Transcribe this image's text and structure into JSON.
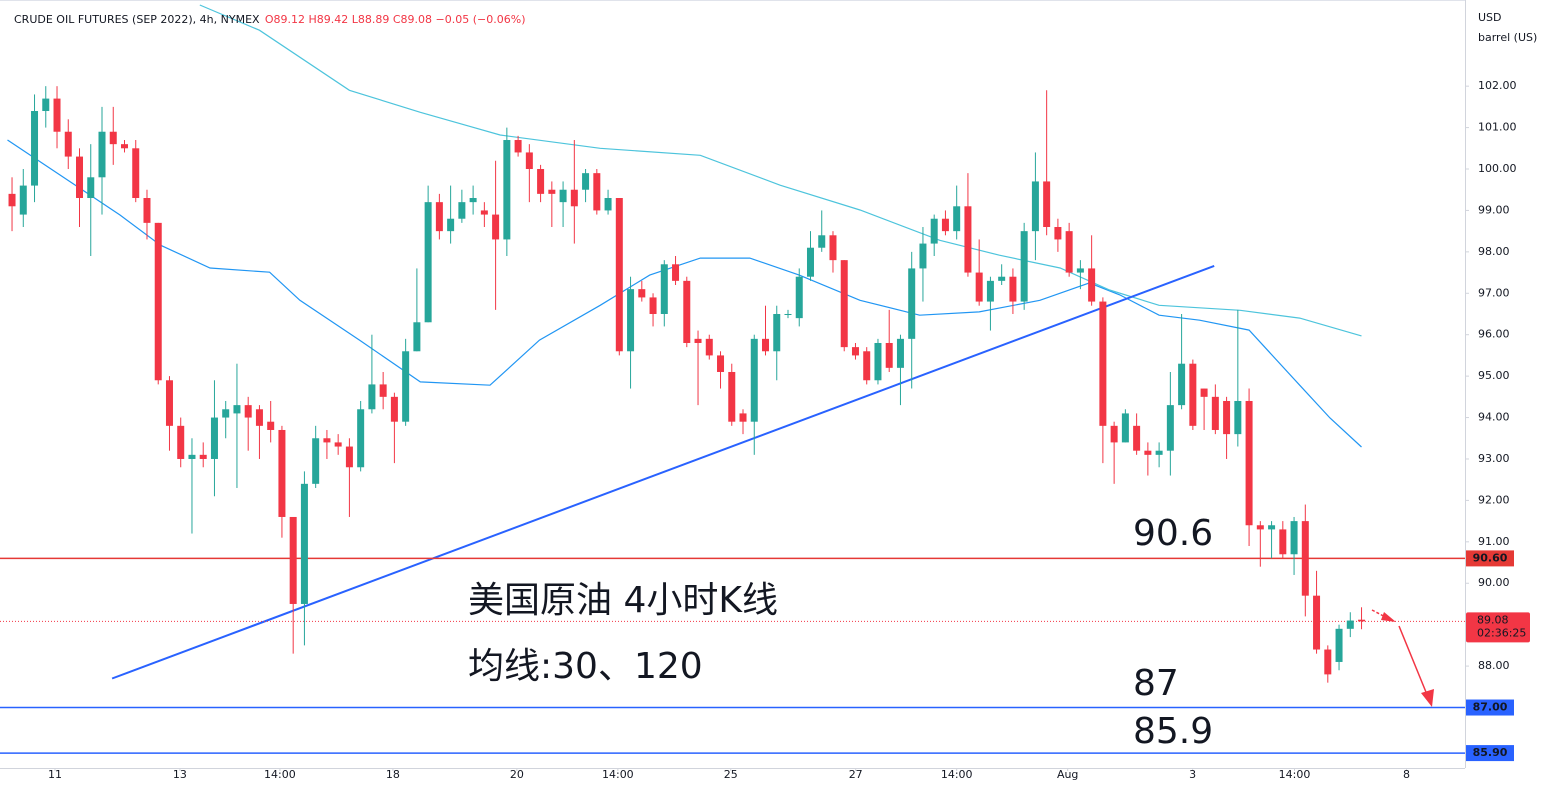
{
  "chart_data": {
    "type": "candlestick",
    "title": "CRUDE OIL FUTURES (SEP 2022), 4h, NYMEX",
    "ohlc_text": "O89.12 H89.42 L88.89 C89.08 −0.05 (−0.06%)",
    "y_axis_unit": [
      "USD",
      "barrel (US)"
    ],
    "xlim": [
      -1.07,
      129.2
    ],
    "xticks": [
      {
        "value": 3.82,
        "label": "11"
      },
      {
        "value": 14.93,
        "label": "13"
      },
      {
        "value": 23.82,
        "label": "14:00"
      },
      {
        "value": 33.87,
        "label": "18"
      },
      {
        "value": 44.89,
        "label": "20"
      },
      {
        "value": 53.87,
        "label": "14:00"
      },
      {
        "value": 63.91,
        "label": "25"
      },
      {
        "value": 75.02,
        "label": "27"
      },
      {
        "value": 84.0,
        "label": "14:00"
      },
      {
        "value": 93.87,
        "label": "Aug"
      },
      {
        "value": 104.98,
        "label": "3"
      },
      {
        "value": 114.04,
        "label": "14:00"
      },
      {
        "value": 124.0,
        "label": "8"
      }
    ],
    "ylim": [
      85.54,
      104.08
    ],
    "yticks": [
      {
        "value": 88,
        "label": "88.00"
      },
      {
        "value": 89,
        "label": "89.00"
      },
      {
        "value": 90,
        "label": "90.00"
      },
      {
        "value": 91,
        "label": "91.00"
      },
      {
        "value": 92,
        "label": "92.00"
      },
      {
        "value": 93,
        "label": "93.00"
      },
      {
        "value": 94,
        "label": "94.00"
      },
      {
        "value": 95,
        "label": "95.00"
      },
      {
        "value": 96,
        "label": "96.00"
      },
      {
        "value": 97,
        "label": "97.00"
      },
      {
        "value": 98,
        "label": "98.00"
      },
      {
        "value": 99,
        "label": "99.00"
      },
      {
        "value": 100,
        "label": "100.00"
      },
      {
        "value": 101,
        "label": "101.00"
      },
      {
        "value": 102,
        "label": "102.00"
      }
    ],
    "up_color": "#26a69a",
    "down_color": "#f23645",
    "open": [
      99.4,
      98.9,
      99.6,
      101.4,
      101.7,
      100.9,
      100.3,
      99.3,
      99.8,
      100.9,
      100.6,
      100.5,
      99.3,
      98.7,
      94.9,
      93.8,
      93.0,
      93.1,
      93.0,
      94.0,
      94.1,
      94.3,
      94.2,
      93.9,
      93.7,
      91.6,
      89.5,
      92.4,
      93.5,
      93.4,
      93.3,
      92.8,
      94.2,
      94.8,
      94.5,
      93.9,
      95.6,
      96.3,
      99.2,
      98.5,
      98.8,
      99.2,
      99.0,
      98.9,
      98.3,
      100.7,
      100.4,
      100.0,
      99.5,
      99.2,
      99.5,
      99.5,
      99.9,
      99.0,
      99.3,
      95.6,
      97.1,
      96.9,
      96.5,
      97.7,
      97.3,
      95.9,
      95.9,
      95.5,
      95.1,
      94.1,
      93.9,
      95.9,
      95.6,
      96.5,
      96.4,
      97.4,
      98.1,
      98.4,
      97.8,
      95.7,
      95.6,
      94.9,
      95.8,
      95.2,
      95.9,
      97.6,
      98.2,
      98.8,
      98.5,
      99.1,
      97.5,
      96.8,
      97.3,
      97.4,
      96.8,
      98.5,
      99.7,
      98.6,
      98.5,
      97.5,
      97.6,
      96.8,
      93.8,
      93.4,
      93.8,
      93.2,
      93.1,
      93.2,
      94.3,
      95.3,
      94.7,
      94.5,
      94.4,
      93.6,
      94.4,
      91.4,
      91.3,
      91.3,
      90.7,
      91.5,
      89.7,
      88.4,
      88.1,
      88.9,
      89.12
    ],
    "high": [
      99.8,
      100.0,
      101.8,
      102.0,
      102.0,
      101.2,
      100.5,
      100.6,
      101.5,
      101.5,
      100.7,
      100.7,
      99.5,
      98.7,
      95.0,
      94.0,
      93.5,
      93.4,
      94.9,
      94.4,
      95.3,
      94.5,
      94.3,
      94.4,
      93.8,
      91.6,
      92.7,
      93.8,
      93.7,
      93.6,
      93.5,
      94.4,
      96.0,
      95.1,
      94.6,
      95.9,
      97.6,
      99.6,
      99.4,
      99.6,
      99.5,
      99.6,
      99.2,
      100.2,
      101.0,
      100.8,
      100.6,
      100.1,
      99.7,
      99.7,
      100.7,
      100.0,
      100.0,
      99.5,
      99.3,
      97.4,
      97.3,
      97.0,
      97.8,
      97.9,
      97.4,
      96.1,
      96.0,
      95.6,
      95.3,
      94.2,
      96.0,
      96.7,
      96.7,
      96.6,
      97.6,
      98.5,
      99.0,
      98.5,
      97.8,
      95.8,
      95.7,
      95.9,
      96.6,
      96.0,
      98.0,
      98.6,
      98.9,
      99.0,
      99.6,
      99.9,
      98.3,
      97.4,
      97.7,
      97.6,
      98.7,
      100.4,
      101.9,
      98.8,
      98.7,
      97.8,
      98.4,
      96.9,
      93.9,
      94.2,
      94.1,
      93.4,
      93.4,
      95.1,
      96.5,
      95.4,
      94.7,
      94.8,
      94.5,
      96.6,
      94.7,
      91.5,
      91.5,
      91.5,
      91.6,
      91.9,
      90.3,
      88.5,
      89.0,
      89.3,
      89.42
    ],
    "low": [
      98.5,
      98.6,
      99.2,
      101.0,
      100.5,
      100.0,
      98.6,
      97.9,
      98.9,
      100.1,
      100.4,
      99.2,
      98.3,
      94.8,
      93.2,
      92.8,
      91.2,
      92.8,
      92.1,
      93.5,
      92.3,
      93.2,
      93.0,
      93.4,
      91.1,
      88.3,
      88.5,
      92.3,
      93.0,
      93.1,
      91.6,
      92.7,
      94.1,
      94.2,
      92.9,
      93.8,
      95.6,
      96.3,
      98.3,
      98.2,
      98.7,
      98.9,
      98.6,
      96.6,
      97.9,
      100.3,
      99.2,
      99.2,
      98.6,
      98.6,
      98.2,
      99.2,
      98.9,
      98.9,
      95.5,
      94.7,
      96.8,
      96.2,
      96.2,
      97.2,
      95.7,
      94.3,
      95.4,
      94.7,
      93.8,
      93.6,
      93.1,
      95.5,
      94.9,
      96.4,
      96.2,
      97.3,
      98.0,
      97.5,
      95.6,
      95.4,
      94.8,
      94.8,
      95.1,
      94.3,
      94.7,
      96.8,
      97.9,
      98.4,
      98.3,
      97.4,
      96.7,
      96.1,
      97.2,
      96.5,
      96.6,
      97.8,
      98.4,
      98.0,
      97.4,
      97.1,
      96.7,
      92.9,
      92.4,
      93.4,
      93.1,
      92.6,
      92.8,
      92.6,
      94.2,
      93.7,
      93.7,
      93.6,
      93.0,
      93.3,
      90.9,
      90.4,
      90.6,
      90.6,
      90.2,
      89.2,
      88.3,
      87.6,
      87.9,
      88.7,
      88.89
    ],
    "close": [
      99.1,
      99.6,
      101.4,
      101.7,
      100.9,
      100.3,
      99.3,
      99.8,
      100.9,
      100.6,
      100.5,
      99.3,
      98.7,
      94.9,
      93.8,
      93.0,
      93.1,
      93.0,
      94.0,
      94.2,
      94.3,
      94.0,
      93.8,
      93.7,
      91.6,
      89.5,
      92.4,
      93.5,
      93.4,
      93.3,
      92.8,
      94.2,
      94.8,
      94.5,
      93.9,
      95.6,
      96.3,
      99.2,
      98.5,
      98.8,
      99.2,
      99.3,
      98.9,
      98.3,
      100.7,
      100.4,
      100.0,
      99.4,
      99.4,
      99.5,
      99.1,
      99.9,
      99.0,
      99.3,
      95.6,
      97.1,
      96.9,
      96.5,
      97.7,
      97.3,
      95.8,
      95.8,
      95.5,
      95.1,
      93.9,
      93.9,
      95.9,
      95.6,
      96.5,
      96.5,
      97.4,
      98.1,
      98.4,
      97.8,
      95.7,
      95.5,
      94.9,
      95.8,
      95.2,
      95.9,
      97.6,
      98.2,
      98.8,
      98.5,
      99.1,
      97.5,
      96.8,
      97.3,
      97.4,
      96.8,
      98.5,
      99.7,
      98.6,
      98.3,
      97.5,
      97.6,
      96.8,
      93.8,
      93.4,
      94.1,
      93.2,
      93.1,
      93.2,
      94.3,
      95.3,
      93.8,
      94.5,
      93.7,
      93.6,
      94.4,
      91.4,
      91.3,
      91.4,
      90.7,
      91.5,
      89.7,
      88.4,
      87.8,
      88.9,
      89.1,
      89.08
    ],
    "moving_averages": [
      {
        "color": "#2196f3",
        "x": [
          -0.4,
          4.3,
          9.6,
          13.2,
          17.6,
          22.9,
          25.6,
          30.9,
          36.3,
          42.5,
          46.9,
          52.3,
          56.7,
          61.2,
          65.6,
          70.0,
          75.4,
          80.7,
          86.0,
          91.4,
          95.8,
          98.5,
          102.0,
          105.6,
          110.0,
          114.5,
          117.2,
          120.0
        ],
        "values": [
          100.7,
          99.85,
          98.89,
          98.16,
          97.61,
          97.51,
          96.83,
          95.87,
          94.86,
          94.78,
          95.87,
          96.71,
          97.44,
          97.85,
          97.85,
          97.44,
          96.83,
          96.47,
          96.55,
          96.83,
          97.25,
          96.96,
          96.47,
          96.35,
          96.11,
          94.78,
          93.99,
          93.29
        ]
      },
      {
        "color": "#4dc4dc",
        "x": [
          16.7,
          22.0,
          30.0,
          36.3,
          43.4,
          52.3,
          61.2,
          68.3,
          75.4,
          82.5,
          87.8,
          93.2,
          97.6,
          102.0,
          109.2,
          114.5,
          120.0
        ],
        "values": [
          103.96,
          103.35,
          101.9,
          101.37,
          100.82,
          100.5,
          100.33,
          99.61,
          99.01,
          98.28,
          97.92,
          97.61,
          97.08,
          96.71,
          96.59,
          96.4,
          95.97
        ]
      }
    ],
    "trendline": {
      "color": "#2962ff",
      "x": [
        8.9,
        106.9
      ],
      "values": [
        87.7,
        97.66
      ]
    },
    "price_lines": [
      {
        "value": 90.6,
        "label": "90.60",
        "color": "#e53935"
      },
      {
        "value": 87.0,
        "label": "87.00",
        "color": "#2962ff"
      },
      {
        "value": 85.9,
        "label": "85.90",
        "color": "#2962ff"
      }
    ],
    "last_price": {
      "value": 89.08,
      "label": "89.08",
      "countdown": "02:36:25",
      "color": "#f23645"
    },
    "annotations": [
      "90.6",
      "87",
      "85.9",
      "美国原油 4小时K线",
      "均线:30、120"
    ]
  }
}
